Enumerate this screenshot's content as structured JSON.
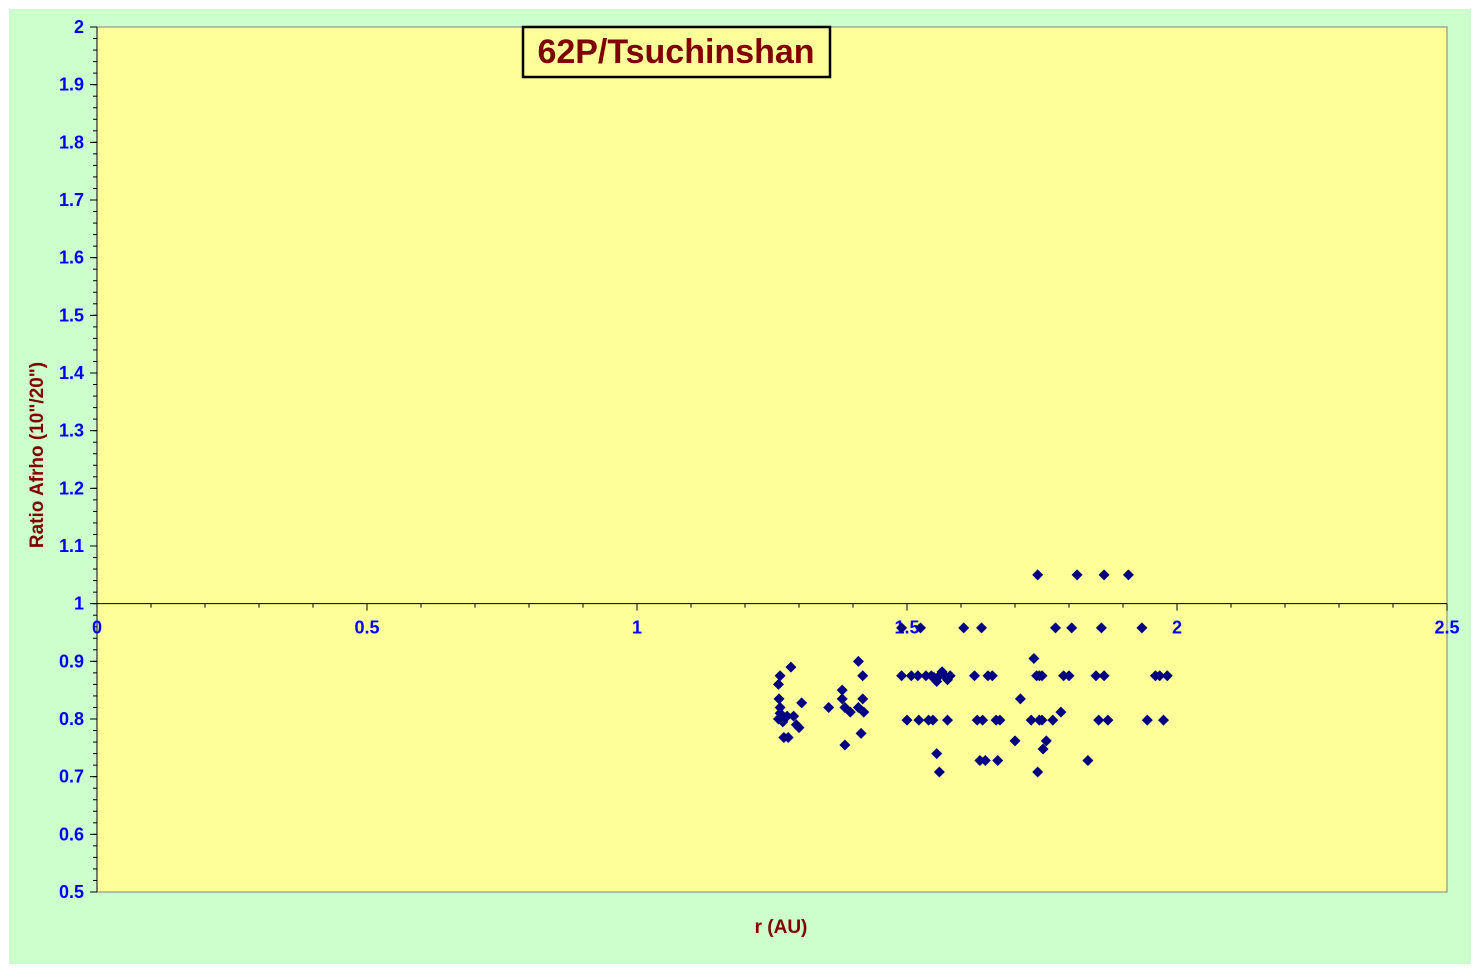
{
  "chart_data": {
    "type": "scatter",
    "title": "62P/Tsuchinshan",
    "xlabel": "r (AU)",
    "ylabel": "Ratio  Afrho (10\"/20\")",
    "xlim": [
      0,
      2.5
    ],
    "ylim": [
      0.5,
      2
    ],
    "x_axis_crosses_at_y": 1,
    "xticks": [
      0,
      0.5,
      1,
      1.5,
      2,
      2.5
    ],
    "xtick_labels": [
      "0",
      "0.5",
      "1",
      "1.5",
      "2",
      "2.5"
    ],
    "yticks": [
      0.5,
      0.6,
      0.7,
      0.8,
      0.9,
      1,
      1.1,
      1.2,
      1.3,
      1.4,
      1.5,
      1.6,
      1.7,
      1.8,
      1.9,
      2
    ],
    "ytick_labels": [
      "0.5",
      "0.6",
      "0.7",
      "0.8",
      "0.9",
      "1",
      "1.1",
      "1.2",
      "1.3",
      "1.4",
      "1.5",
      "1.6",
      "1.7",
      "1.8",
      "1.9",
      "2"
    ],
    "grid": false,
    "legend": "none",
    "colors": {
      "outer_background": "#ccffcc",
      "plot_background": "#ffff99",
      "marker": "#000080",
      "title_text": "#800000",
      "axis_title_text": "#800000",
      "tick_label_text": "#0000ff"
    },
    "series": [
      {
        "marker": "diamond",
        "points": [
          [
            1.265,
            0.875
          ],
          [
            1.262,
            0.86
          ],
          [
            1.263,
            0.835
          ],
          [
            1.265,
            0.82
          ],
          [
            1.262,
            0.8
          ],
          [
            1.268,
            0.805
          ],
          [
            1.27,
            0.795
          ],
          [
            1.265,
            0.81
          ],
          [
            1.272,
            0.768
          ],
          [
            1.28,
            0.768
          ],
          [
            1.285,
            0.89
          ],
          [
            1.29,
            0.805
          ],
          [
            1.295,
            0.79
          ],
          [
            1.3,
            0.785
          ],
          [
            1.305,
            0.828
          ],
          [
            1.27,
            0.8
          ],
          [
            1.278,
            0.805
          ],
          [
            1.355,
            0.82
          ],
          [
            1.38,
            0.85
          ],
          [
            1.38,
            0.835
          ],
          [
            1.385,
            0.82
          ],
          [
            1.395,
            0.812
          ],
          [
            1.385,
            0.755
          ],
          [
            1.41,
            0.9
          ],
          [
            1.418,
            0.875
          ],
          [
            1.418,
            0.835
          ],
          [
            1.415,
            0.775
          ],
          [
            1.42,
            0.812
          ],
          [
            1.41,
            0.82
          ],
          [
            1.49,
            0.958
          ],
          [
            1.49,
            0.875
          ],
          [
            1.5,
            0.798
          ],
          [
            1.508,
            0.875
          ],
          [
            1.52,
            0.875
          ],
          [
            1.525,
            0.958
          ],
          [
            1.522,
            0.798
          ],
          [
            1.535,
            0.875
          ],
          [
            1.54,
            0.798
          ],
          [
            1.545,
            0.875
          ],
          [
            1.55,
            0.872
          ],
          [
            1.548,
            0.798
          ],
          [
            1.555,
            0.865
          ],
          [
            1.555,
            0.74
          ],
          [
            1.56,
            0.875
          ],
          [
            1.565,
            0.882
          ],
          [
            1.56,
            0.708
          ],
          [
            1.57,
            0.875
          ],
          [
            1.575,
            0.868
          ],
          [
            1.575,
            0.798
          ],
          [
            1.58,
            0.875
          ],
          [
            1.605,
            0.958
          ],
          [
            1.625,
            0.875
          ],
          [
            1.63,
            0.798
          ],
          [
            1.635,
            0.728
          ],
          [
            1.638,
            0.958
          ],
          [
            1.64,
            0.798
          ],
          [
            1.645,
            0.728
          ],
          [
            1.65,
            0.875
          ],
          [
            1.658,
            0.875
          ],
          [
            1.665,
            0.798
          ],
          [
            1.668,
            0.728
          ],
          [
            1.672,
            0.798
          ],
          [
            1.7,
            0.762
          ],
          [
            1.71,
            0.835
          ],
          [
            1.73,
            0.798
          ],
          [
            1.735,
            0.905
          ],
          [
            1.74,
            0.875
          ],
          [
            1.742,
            1.05
          ],
          [
            1.745,
            0.875
          ],
          [
            1.745,
            0.798
          ],
          [
            1.75,
            0.875
          ],
          [
            1.75,
            0.798
          ],
          [
            1.742,
            0.708
          ],
          [
            1.752,
            0.748
          ],
          [
            1.758,
            0.762
          ],
          [
            1.77,
            0.798
          ],
          [
            1.775,
            0.958
          ],
          [
            1.785,
            0.812
          ],
          [
            1.79,
            0.875
          ],
          [
            1.8,
            0.875
          ],
          [
            1.805,
            0.958
          ],
          [
            1.815,
            1.05
          ],
          [
            1.835,
            0.728
          ],
          [
            1.85,
            0.875
          ],
          [
            1.855,
            0.798
          ],
          [
            1.86,
            0.958
          ],
          [
            1.865,
            0.875
          ],
          [
            1.865,
            1.05
          ],
          [
            1.872,
            0.798
          ],
          [
            1.91,
            1.05
          ],
          [
            1.935,
            0.958
          ],
          [
            1.945,
            0.798
          ],
          [
            1.96,
            0.875
          ],
          [
            1.968,
            0.875
          ],
          [
            1.975,
            0.798
          ],
          [
            1.982,
            0.875
          ]
        ]
      }
    ]
  }
}
